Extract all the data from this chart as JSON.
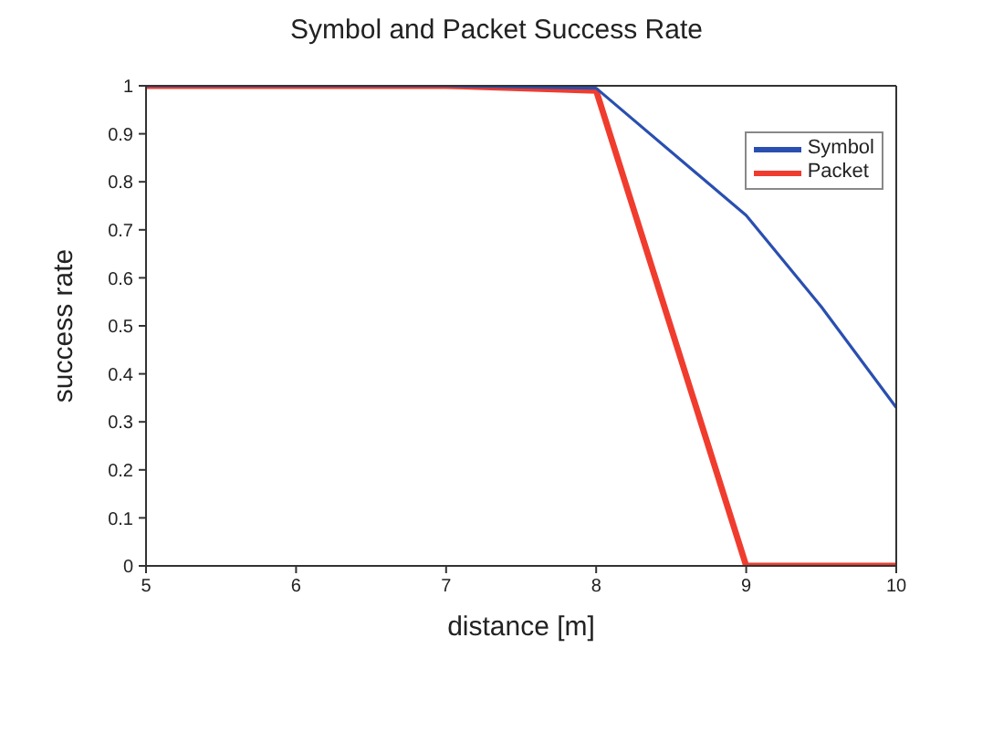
{
  "chart_data": {
    "type": "line",
    "title": "Symbol and Packet Success Rate",
    "xlabel": "distance [m]",
    "ylabel": "success rate",
    "series": [
      {
        "name": "Symbol",
        "color": "#2a4fb0",
        "x": [
          5,
          6,
          7,
          8,
          9,
          9.5,
          10
        ],
        "values": [
          1,
          1,
          1,
          0.995,
          0.73,
          0.54,
          0.33
        ]
      },
      {
        "name": "Packet",
        "color": "#f03c2e",
        "x": [
          5,
          6,
          7,
          8,
          9,
          10
        ],
        "values": [
          1,
          1,
          1,
          0.99,
          0,
          0
        ]
      }
    ],
    "xlim": [
      5,
      10
    ],
    "xticks": [
      5,
      6,
      7,
      8,
      9,
      10
    ],
    "ylim": [
      0,
      1
    ],
    "yticks": [
      0,
      0.1,
      0.2,
      0.3,
      0.4,
      0.5,
      0.6,
      0.7,
      0.8,
      0.9,
      1
    ],
    "grid": false,
    "legend": "top right",
    "marker": "none",
    "line_style": "solid"
  }
}
